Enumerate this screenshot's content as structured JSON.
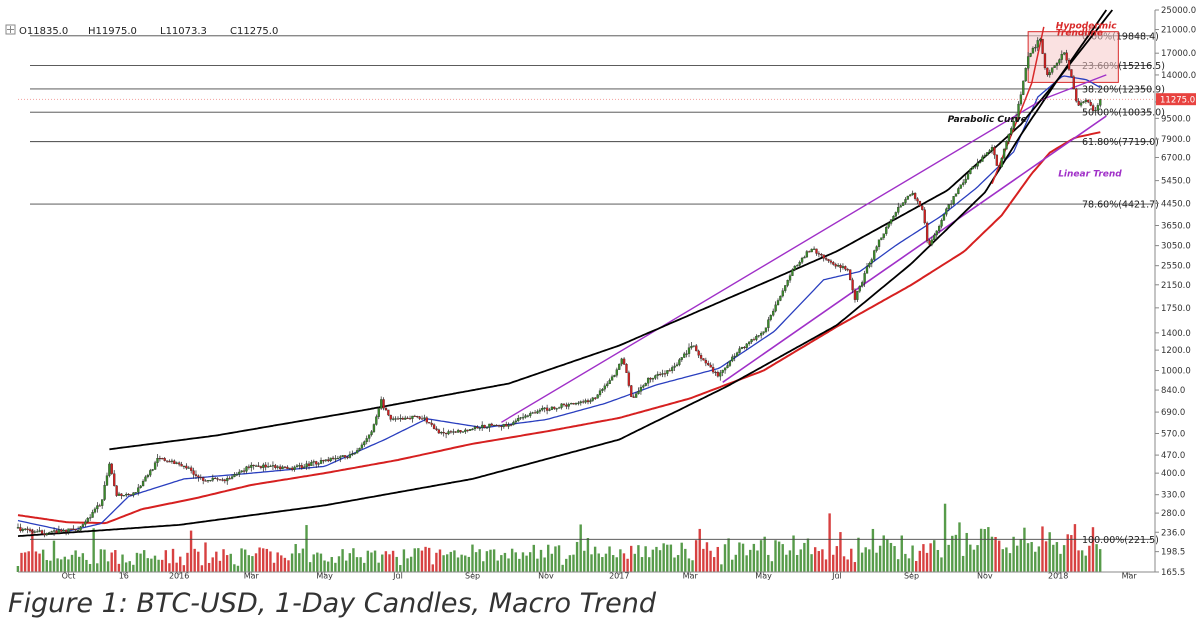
{
  "caption": "Figure 1: BTC-USD, 1-Day Candles, Macro Trend",
  "ohlc": {
    "open": "O11835.0",
    "high": "H11975.0",
    "low": "L11073.3",
    "close": "C11275.0"
  },
  "colors": {
    "up": "#3a8a2a",
    "down": "#d02020",
    "ma_short": "#2a3fbf",
    "ma_long": "#d62020",
    "trend": "#000000",
    "linear": "#a030c8",
    "hypodermic": "#d82a2a",
    "fib": "#444444",
    "price_tag": "#e8423f",
    "box": "#f6c8c8"
  },
  "chart_data": {
    "type": "line",
    "title": "",
    "xlabel": "",
    "ylabel": "",
    "y_scale": "log",
    "ylim": [
      165.5,
      25000
    ],
    "y_ticks": [
      25000,
      21000,
      17000,
      14000,
      11000,
      9500,
      7900,
      6700,
      5450,
      4450,
      3650,
      3050,
      2550,
      2150,
      1750,
      1400,
      1200,
      1000,
      840,
      690,
      570,
      470,
      400,
      330,
      280,
      236,
      198.5,
      165.5
    ],
    "y_tick_labels": [
      "25000.0",
      "21000.0",
      "17000.0",
      "14000.0",
      "11000.0",
      "9500.0",
      "7900.0",
      "6700.0",
      "5450.0",
      "4450.0",
      "3650.0",
      "3050.0",
      "2550.0",
      "2150.0",
      "1750.0",
      "1400.0",
      "1200.0",
      "1000.0",
      "840.0",
      "690.0",
      "570.0",
      "470.0",
      "400.0",
      "330.0",
      "280.0",
      "236.0",
      "198.5",
      "165.5"
    ],
    "x_ticks": [
      {
        "label": "Oct",
        "date": "2015-10-01"
      },
      {
        "label": "16",
        "date": "2015-11-16"
      },
      {
        "label": "2016",
        "date": "2016-01-01"
      },
      {
        "label": "Mar",
        "date": "2016-03-01"
      },
      {
        "label": "May",
        "date": "2016-05-01"
      },
      {
        "label": "Jul",
        "date": "2016-07-01"
      },
      {
        "label": "Sep",
        "date": "2016-09-01"
      },
      {
        "label": "Nov",
        "date": "2016-11-01"
      },
      {
        "label": "2017",
        "date": "2017-01-01"
      },
      {
        "label": "Mar",
        "date": "2017-03-01"
      },
      {
        "label": "May",
        "date": "2017-05-01"
      },
      {
        "label": "Jul",
        "date": "2017-07-01"
      },
      {
        "label": "Sep",
        "date": "2017-09-01"
      },
      {
        "label": "Nov",
        "date": "2017-11-01"
      },
      {
        "label": "2018",
        "date": "2018-01-01"
      },
      {
        "label": "Mar",
        "date": "2018-03-01"
      }
    ],
    "x_range": [
      "2015-08-20",
      "2018-03-20"
    ],
    "series": [
      {
        "role": "price",
        "points": [
          [
            "2015-08-20",
            245
          ],
          [
            "2015-09-05",
            235
          ],
          [
            "2015-09-25",
            237
          ],
          [
            "2015-10-10",
            245
          ],
          [
            "2015-10-28",
            305
          ],
          [
            "2015-11-04",
            430
          ],
          [
            "2015-11-10",
            330
          ],
          [
            "2015-11-25",
            335
          ],
          [
            "2015-12-15",
            455
          ],
          [
            "2016-01-05",
            430
          ],
          [
            "2016-01-20",
            380
          ],
          [
            "2016-02-10",
            375
          ],
          [
            "2016-03-01",
            430
          ],
          [
            "2016-04-01",
            415
          ],
          [
            "2016-05-01",
            450
          ],
          [
            "2016-05-25",
            470
          ],
          [
            "2016-06-10",
            590
          ],
          [
            "2016-06-17",
            760
          ],
          [
            "2016-06-25",
            640
          ],
          [
            "2016-07-20",
            665
          ],
          [
            "2016-08-05",
            570
          ],
          [
            "2016-08-20",
            580
          ],
          [
            "2016-09-10",
            605
          ],
          [
            "2016-10-01",
            615
          ],
          [
            "2016-10-25",
            700
          ],
          [
            "2016-11-15",
            730
          ],
          [
            "2016-12-10",
            775
          ],
          [
            "2016-12-28",
            960
          ],
          [
            "2017-01-04",
            1130
          ],
          [
            "2017-01-11",
            780
          ],
          [
            "2017-01-25",
            920
          ],
          [
            "2017-02-15",
            1020
          ],
          [
            "2017-03-03",
            1270
          ],
          [
            "2017-03-10",
            1100
          ],
          [
            "2017-03-25",
            950
          ],
          [
            "2017-04-10",
            1200
          ],
          [
            "2017-05-01",
            1420
          ],
          [
            "2017-05-20",
            2200
          ],
          [
            "2017-05-25",
            2500
          ],
          [
            "2017-06-11",
            2980
          ],
          [
            "2017-06-20",
            2700
          ],
          [
            "2017-07-10",
            2450
          ],
          [
            "2017-07-16",
            1900
          ],
          [
            "2017-08-05",
            3220
          ],
          [
            "2017-08-20",
            4150
          ],
          [
            "2017-09-01",
            4900
          ],
          [
            "2017-09-10",
            4200
          ],
          [
            "2017-09-15",
            3000
          ],
          [
            "2017-10-01",
            4300
          ],
          [
            "2017-10-20",
            6000
          ],
          [
            "2017-11-07",
            7300
          ],
          [
            "2017-11-12",
            5900
          ],
          [
            "2017-11-20",
            8100
          ],
          [
            "2017-11-28",
            10000
          ],
          [
            "2017-12-07",
            16500
          ],
          [
            "2017-12-17",
            19500
          ],
          [
            "2017-12-22",
            14000
          ],
          [
            "2017-12-28",
            15000
          ],
          [
            "2018-01-06",
            17000
          ],
          [
            "2018-01-12",
            13800
          ],
          [
            "2018-01-17",
            10500
          ],
          [
            "2018-01-25",
            11200
          ],
          [
            "2018-01-31",
            10100
          ],
          [
            "2018-02-05",
            11275
          ]
        ]
      },
      {
        "role": "ma_short",
        "points": [
          [
            "2015-08-20",
            262
          ],
          [
            "2015-09-30",
            238
          ],
          [
            "2015-10-28",
            255
          ],
          [
            "2015-11-20",
            325
          ],
          [
            "2016-01-05",
            380
          ],
          [
            "2016-03-01",
            400
          ],
          [
            "2016-05-01",
            425
          ],
          [
            "2016-06-20",
            540
          ],
          [
            "2016-07-25",
            650
          ],
          [
            "2016-09-10",
            600
          ],
          [
            "2016-11-01",
            645
          ],
          [
            "2016-12-20",
            745
          ],
          [
            "2017-02-01",
            880
          ],
          [
            "2017-03-25",
            1020
          ],
          [
            "2017-05-10",
            1420
          ],
          [
            "2017-06-20",
            2250
          ],
          [
            "2017-07-20",
            2420
          ],
          [
            "2017-08-20",
            3080
          ],
          [
            "2017-09-25",
            3950
          ],
          [
            "2017-10-25",
            5100
          ],
          [
            "2017-11-25",
            7050
          ],
          [
            "2017-12-15",
            11500
          ],
          [
            "2018-01-05",
            13900
          ],
          [
            "2018-01-25",
            13400
          ],
          [
            "2018-02-05",
            12500
          ]
        ]
      },
      {
        "role": "ma_long",
        "points": [
          [
            "2015-08-20",
            275
          ],
          [
            "2015-09-30",
            258
          ],
          [
            "2015-11-01",
            256
          ],
          [
            "2015-12-01",
            290
          ],
          [
            "2016-01-15",
            320
          ],
          [
            "2016-03-01",
            360
          ],
          [
            "2016-05-01",
            400
          ],
          [
            "2016-07-01",
            450
          ],
          [
            "2016-09-01",
            520
          ],
          [
            "2016-11-01",
            580
          ],
          [
            "2017-01-01",
            655
          ],
          [
            "2017-03-01",
            780
          ],
          [
            "2017-05-01",
            1000
          ],
          [
            "2017-07-01",
            1480
          ],
          [
            "2017-09-01",
            2150
          ],
          [
            "2017-10-15",
            2900
          ],
          [
            "2017-11-15",
            4000
          ],
          [
            "2017-12-10",
            5800
          ],
          [
            "2017-12-25",
            7000
          ],
          [
            "2018-01-15",
            8000
          ],
          [
            "2018-02-05",
            8400
          ]
        ]
      },
      {
        "role": "parabolic_upper",
        "points": [
          [
            "2015-11-04",
            495
          ],
          [
            "2016-02-01",
            560
          ],
          [
            "2016-06-01",
            700
          ],
          [
            "2016-10-01",
            890
          ],
          [
            "2017-01-01",
            1250
          ],
          [
            "2017-04-01",
            1900
          ],
          [
            "2017-07-01",
            2900
          ],
          [
            "2017-10-01",
            5000
          ],
          [
            "2017-12-01",
            9000
          ],
          [
            "2018-01-01",
            13500
          ],
          [
            "2018-02-15",
            25000
          ]
        ]
      },
      {
        "role": "parabolic_lower",
        "points": [
          [
            "2015-08-20",
            228
          ],
          [
            "2016-01-01",
            252
          ],
          [
            "2016-05-01",
            300
          ],
          [
            "2016-09-01",
            380
          ],
          [
            "2017-01-01",
            540
          ],
          [
            "2017-04-01",
            870
          ],
          [
            "2017-07-01",
            1500
          ],
          [
            "2017-09-01",
            2600
          ],
          [
            "2017-11-01",
            4900
          ],
          [
            "2017-12-01",
            8200
          ],
          [
            "2018-01-01",
            13500
          ],
          [
            "2018-02-10",
            25000
          ]
        ]
      },
      {
        "role": "linear_upper",
        "points": [
          [
            "2016-09-25",
            630
          ],
          [
            "2017-12-20",
            11300
          ],
          [
            "2018-02-10",
            14000
          ]
        ]
      },
      {
        "role": "linear_lower",
        "points": [
          [
            "2017-03-28",
            900
          ],
          [
            "2018-02-10",
            9700
          ]
        ]
      },
      {
        "role": "hypodermic",
        "points": [
          [
            "2017-11-07",
            5300
          ],
          [
            "2017-12-10",
            13000
          ],
          [
            "2017-12-20",
            21500
          ]
        ]
      }
    ],
    "fib_levels": [
      {
        "label": "0.00%(19848.4)",
        "value": 19848.4
      },
      {
        "label": "23.60%(15216.5)",
        "value": 15216.5
      },
      {
        "label": "38.20%(12350.9)",
        "value": 12350.9
      },
      {
        "label": "50.00%(10035.0)",
        "value": 10035
      },
      {
        "label": "61.80%(7719.0)",
        "value": 7719
      },
      {
        "label": "78.60%(4421.7)",
        "value": 4421.7
      },
      {
        "label": "100.00%(221.5)",
        "value": 221.5
      }
    ],
    "last_price": {
      "label": "11275.0",
      "value": 11275
    },
    "annotations": [
      {
        "text": "Hypodermic",
        "date": "2017-12-30",
        "value": 21200
      },
      {
        "text": "Trendline",
        "date": "2017-12-30",
        "value": 19900
      },
      {
        "text": "Parabolic Curve",
        "date": "2017-10-01",
        "value": 9200
      },
      {
        "text": "Linear Trend",
        "date": "2018-01-01",
        "value": 5650
      }
    ],
    "shaded_box": {
      "start": "2017-12-07",
      "end": "2018-02-20",
      "low": 13100,
      "high": 20600
    },
    "volume_hint": {
      "base_value": 165.5,
      "max_value": 420
    }
  }
}
